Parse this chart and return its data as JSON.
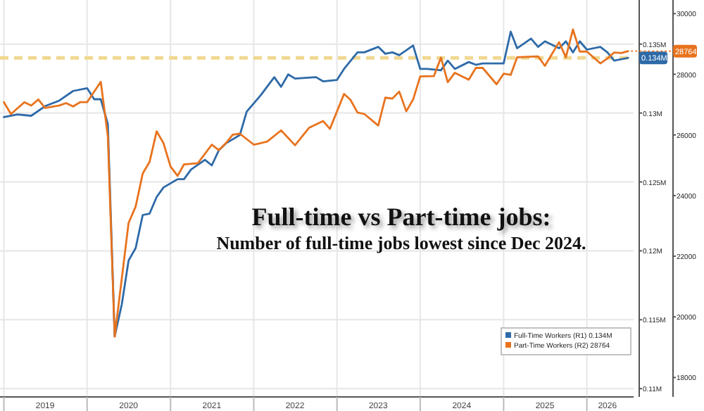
{
  "chart_data": {
    "type": "line",
    "title": "Full-time vs Part-time jobs:",
    "subtitle": "Number of full-time jobs lowest since Dec 2024.",
    "xlim": [
      "2018-12-15",
      "2026-07-25"
    ],
    "xticks": [
      {
        "value": "2019-01",
        "label": null
      },
      {
        "value": "2019-07",
        "label": "2019"
      },
      {
        "value": "2020-01",
        "label": null
      },
      {
        "value": "2020-07",
        "label": "2020"
      },
      {
        "value": "2021-01",
        "label": null
      },
      {
        "value": "2021-07",
        "label": "2021"
      },
      {
        "value": "2022-01",
        "label": null
      },
      {
        "value": "2022-07",
        "label": "2022"
      },
      {
        "value": "2023-01",
        "label": null
      },
      {
        "value": "2023-07",
        "label": "2023"
      },
      {
        "value": "2024-01",
        "label": null
      },
      {
        "value": "2024-07",
        "label": "2024"
      },
      {
        "value": "2025-01",
        "label": null
      },
      {
        "value": "2025-07",
        "label": "2025"
      },
      {
        "value": "2026-01",
        "label": null
      },
      {
        "value": "2026-04",
        "label": "2026"
      }
    ],
    "ylim": [
      0.1094,
      0.1382
    ],
    "yticks": [
      {
        "value": 0.11,
        "label": "0.11M"
      },
      {
        "value": 0.115,
        "label": "0.115M"
      },
      {
        "value": 0.12,
        "label": "0.12M"
      },
      {
        "value": 0.125,
        "label": "0.125M"
      },
      {
        "value": 0.13,
        "label": "0.13M"
      },
      {
        "value": 0.135,
        "label": "0.135M"
      }
    ],
    "y2lim": [
      17360,
      30450
    ],
    "y2ticks": [
      18000,
      20000,
      22000,
      24000,
      26000,
      28000,
      30000
    ],
    "grid": true,
    "legend": "bottom right",
    "line_style": "solid",
    "ref_lines": [
      {
        "axis": "y",
        "value": 0.134,
        "color": "#f0d890",
        "line_style": "dashed"
      }
    ],
    "series": [
      {
        "name": "Full-Time Workers (R1)",
        "color": "#2e6aa8",
        "axis": "y",
        "x": [
          "2019-01",
          "2019-03",
          "2019-05",
          "2019-07",
          "2019-09",
          "2019-11",
          "2020-01",
          "2020-02",
          "2020-03",
          "2020-04",
          "2020-05",
          "2020-06",
          "2020-07",
          "2020-08",
          "2020-09",
          "2020-10",
          "2020-11",
          "2020-12",
          "2021-02",
          "2021-03",
          "2021-04",
          "2021-06",
          "2021-07",
          "2021-08",
          "2021-09",
          "2021-11",
          "2021-12",
          "2022-02",
          "2022-04",
          "2022-05",
          "2022-06",
          "2022-07",
          "2022-10",
          "2022-11",
          "2023-01",
          "2023-02",
          "2023-04",
          "2023-05",
          "2023-07",
          "2023-08",
          "2023-09",
          "2023-10",
          "2023-12",
          "2024-01",
          "2024-02",
          "2024-04",
          "2024-05",
          "2024-06",
          "2024-08",
          "2024-09",
          "2024-10",
          "2025-01",
          "2025-02",
          "2025-03",
          "2025-05",
          "2025-06",
          "2025-07",
          "2025-09",
          "2025-10",
          "2025-11",
          "2025-12",
          "2026-01",
          "2026-03",
          "2026-04",
          "2026-05",
          "2026-07"
        ],
        "values": [
          0.1297,
          0.1299,
          0.1298,
          0.1305,
          0.1309,
          0.1316,
          0.1318,
          0.131,
          0.131,
          0.1292,
          0.1138,
          0.1161,
          0.1193,
          0.1202,
          0.1226,
          0.1227,
          0.1239,
          0.1246,
          0.1252,
          0.1252,
          0.1259,
          0.1266,
          0.1262,
          0.1273,
          0.1278,
          0.1284,
          0.1301,
          0.1313,
          0.1326,
          0.1319,
          0.1328,
          0.1325,
          0.1326,
          0.1323,
          0.1324,
          0.1332,
          0.1344,
          0.1344,
          0.1348,
          0.1343,
          0.1344,
          0.1342,
          0.1349,
          0.1332,
          0.1332,
          0.1331,
          0.1338,
          0.1332,
          0.1337,
          0.1335,
          0.1336,
          0.1336,
          0.1359,
          0.1347,
          0.1354,
          0.1348,
          0.1352,
          0.1347,
          0.1352,
          0.1344,
          0.1352,
          0.1346,
          0.1348,
          0.1344,
          0.1338,
          0.134
        ],
        "value_labels": [
          null,
          null,
          null,
          null,
          null,
          null,
          null,
          null,
          null,
          null,
          null,
          null,
          null,
          null,
          null,
          null,
          null,
          null,
          null,
          null,
          null,
          null,
          null,
          null,
          null,
          null,
          null,
          null,
          null,
          null,
          null,
          null,
          null,
          null,
          null,
          null,
          null,
          null,
          null,
          null,
          null,
          null,
          null,
          null,
          null,
          null,
          null,
          null,
          null,
          null,
          null,
          null,
          null,
          null,
          null,
          null,
          null,
          null,
          null,
          null,
          null,
          null,
          null,
          null,
          null,
          "0.134M"
        ]
      },
      {
        "name": "Part-Time Workers (R2)",
        "color": "#e8731e",
        "axis": "y2",
        "x": [
          "2019-01",
          "2019-02",
          "2019-04",
          "2019-05",
          "2019-06",
          "2019-07",
          "2019-09",
          "2019-10",
          "2019-11",
          "2019-12",
          "2020-01",
          "2020-03",
          "2020-04",
          "2020-05",
          "2020-07",
          "2020-08",
          "2020-09",
          "2020-10",
          "2020-11",
          "2020-12",
          "2021-01",
          "2021-02",
          "2021-03",
          "2021-05",
          "2021-07",
          "2021-08",
          "2021-09",
          "2021-10",
          "2021-11",
          "2022-01",
          "2022-02",
          "2022-03",
          "2022-05",
          "2022-07",
          "2022-09",
          "2022-11",
          "2022-12",
          "2023-02",
          "2023-03",
          "2023-04",
          "2023-05",
          "2023-07",
          "2023-08",
          "2023-09",
          "2023-10",
          "2023-11",
          "2023-12",
          "2024-01",
          "2024-03",
          "2024-04",
          "2024-05",
          "2024-06",
          "2024-08",
          "2024-09",
          "2024-10",
          "2024-12",
          "2025-01",
          "2025-02",
          "2025-03",
          "2025-06",
          "2025-07",
          "2025-09",
          "2025-10",
          "2025-11",
          "2025-12",
          "2026-01",
          "2026-03",
          "2026-04",
          "2026-05",
          "2026-06",
          "2026-07"
        ],
        "values": [
          27080,
          26690,
          27080,
          26970,
          27170,
          26890,
          26970,
          27050,
          26940,
          27080,
          27080,
          27750,
          25960,
          19350,
          23100,
          23640,
          24730,
          25110,
          26120,
          25730,
          24960,
          24650,
          25030,
          25070,
          25680,
          25500,
          25730,
          26010,
          26040,
          25680,
          25730,
          25780,
          26150,
          25660,
          26240,
          26460,
          26200,
          27350,
          27160,
          26740,
          26690,
          26310,
          27230,
          27200,
          27430,
          26780,
          27170,
          27930,
          27940,
          28550,
          27740,
          28050,
          27820,
          28210,
          28210,
          27670,
          28020,
          27980,
          28560,
          28590,
          28280,
          29060,
          28560,
          29480,
          28750,
          28750,
          28360,
          28520,
          28720,
          28700,
          28764
        ],
        "value_labels": [
          null,
          null,
          null,
          null,
          null,
          null,
          null,
          null,
          null,
          null,
          null,
          null,
          null,
          null,
          null,
          null,
          null,
          null,
          null,
          null,
          null,
          null,
          null,
          null,
          null,
          null,
          null,
          null,
          null,
          null,
          null,
          null,
          null,
          null,
          null,
          null,
          null,
          null,
          null,
          null,
          null,
          null,
          null,
          null,
          null,
          null,
          null,
          null,
          null,
          null,
          null,
          null,
          null,
          null,
          null,
          null,
          null,
          null,
          null,
          null,
          null,
          null,
          null,
          null,
          null,
          null,
          null,
          null,
          null,
          null,
          "28764"
        ]
      }
    ]
  }
}
